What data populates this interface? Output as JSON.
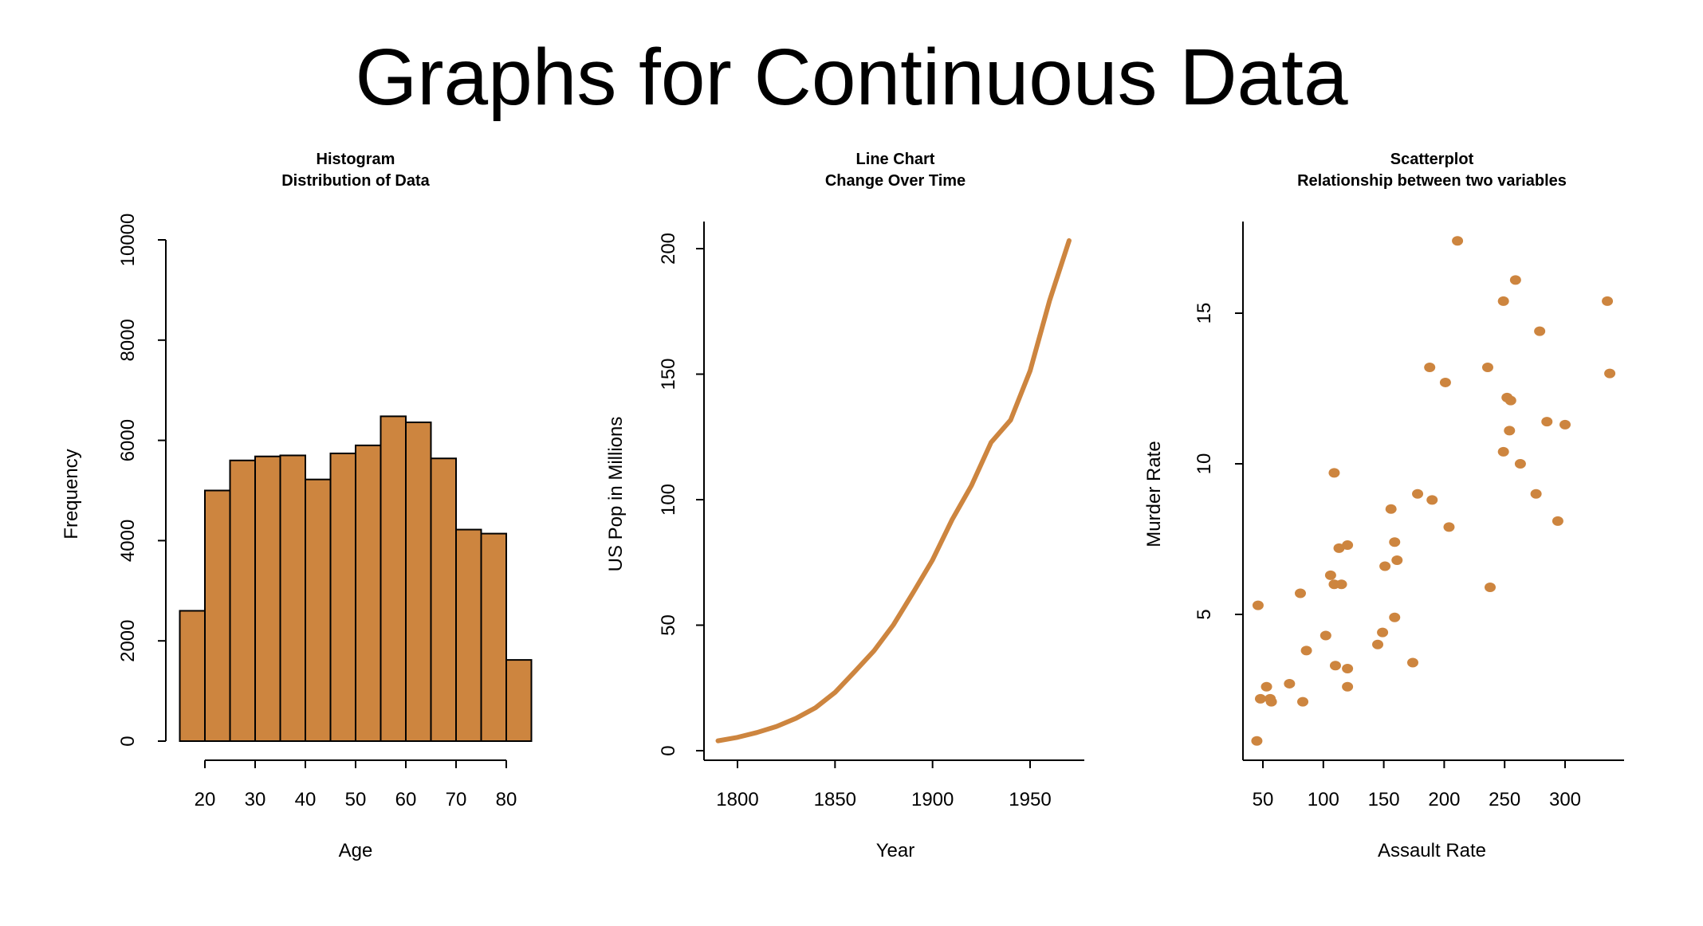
{
  "title": "Graphs for Continuous Data",
  "accent_color": "#CD853F",
  "chart_data": [
    {
      "type": "bar",
      "title": "Histogram",
      "subtitle": "Distribution of Data",
      "xlabel": "Age",
      "ylabel": "Frequency",
      "bin_edges": [
        15,
        20,
        25,
        30,
        35,
        40,
        45,
        50,
        55,
        60,
        65,
        70,
        75,
        80,
        85
      ],
      "values": [
        2600,
        5000,
        5600,
        5680,
        5700,
        5220,
        5740,
        5900,
        6480,
        6360,
        5640,
        4220,
        4140,
        1620
      ],
      "xticks": [
        20,
        30,
        40,
        50,
        60,
        70,
        80
      ],
      "yticks": [
        0,
        2000,
        4000,
        6000,
        8000,
        10000
      ],
      "ylim": [
        0,
        10000
      ],
      "grid": false
    },
    {
      "type": "line",
      "title": "Line Chart",
      "subtitle": "Change Over Time",
      "xlabel": "Year",
      "ylabel": "US Pop in Millions",
      "x": [
        1790,
        1800,
        1810,
        1820,
        1830,
        1840,
        1850,
        1860,
        1870,
        1880,
        1890,
        1900,
        1910,
        1920,
        1930,
        1940,
        1950,
        1960,
        1970
      ],
      "y": [
        3.93,
        5.31,
        7.24,
        9.64,
        12.9,
        17.1,
        23.2,
        31.4,
        39.8,
        50.2,
        62.9,
        76.0,
        92.0,
        105.7,
        122.8,
        131.7,
        151.3,
        179.3,
        203.2
      ],
      "xticks": [
        1800,
        1850,
        1900,
        1950
      ],
      "yticks": [
        0,
        50,
        100,
        150,
        200
      ],
      "grid": false
    },
    {
      "type": "scatter",
      "title": "Scatterplot",
      "subtitle": "Relationship between two variables",
      "xlabel": "Assault Rate",
      "ylabel": "Murder Rate",
      "x": [
        236,
        263,
        294,
        190,
        276,
        204,
        110,
        238,
        335,
        211,
        46,
        120,
        249,
        113,
        56,
        115,
        109,
        249,
        83,
        300,
        149,
        255,
        72,
        259,
        178,
        109,
        102,
        252,
        57,
        159,
        285,
        254,
        337,
        45,
        120,
        151,
        159,
        106,
        174,
        279,
        86,
        188,
        201,
        120,
        48,
        156,
        145,
        81,
        53,
        161
      ],
      "y": [
        13.2,
        10.0,
        8.1,
        8.8,
        9.0,
        7.9,
        3.3,
        5.9,
        15.4,
        17.4,
        5.3,
        2.6,
        10.4,
        7.2,
        2.2,
        6.0,
        9.7,
        15.4,
        2.1,
        11.3,
        4.4,
        12.1,
        2.7,
        16.1,
        9.0,
        6.0,
        4.3,
        12.2,
        2.1,
        7.4,
        11.4,
        11.1,
        13.0,
        0.8,
        7.3,
        6.6,
        4.9,
        6.3,
        3.4,
        14.4,
        3.8,
        13.2,
        12.7,
        3.2,
        2.2,
        8.5,
        4.0,
        5.7,
        2.6,
        6.8
      ],
      "xticks": [
        50,
        100,
        150,
        200,
        250,
        300
      ],
      "yticks": [
        5,
        10,
        15
      ],
      "grid": false
    }
  ]
}
